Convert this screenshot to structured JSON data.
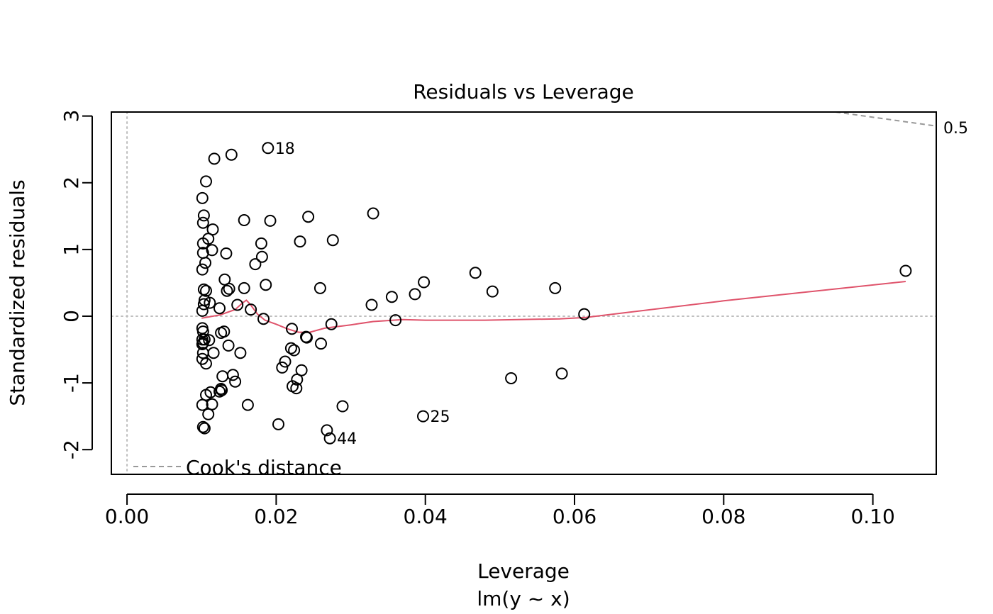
{
  "chart_data": {
    "type": "scatter",
    "title": "Residuals vs Leverage",
    "xlabel": "Leverage",
    "sublabel": "lm(y ~ x)",
    "ylabel": "Standardized residuals",
    "xlim": [
      -0.0021,
      0.1085
    ],
    "ylim": [
      -2.37,
      3.06
    ],
    "x_ticks": [
      0.0,
      0.02,
      0.04,
      0.06,
      0.08,
      0.1
    ],
    "x_tick_labels": [
      "0.00",
      "0.02",
      "0.04",
      "0.06",
      "0.08",
      "0.10"
    ],
    "y_ticks": [
      -2,
      -1,
      0,
      1,
      2,
      3
    ],
    "y_tick_labels": [
      "-2",
      "-1",
      "0",
      "1",
      "2",
      "3"
    ],
    "grid": false,
    "legend": {
      "label": "Cook's distance",
      "position": "bottom-left"
    },
    "cooks_contour": {
      "label": "0.5",
      "points": [
        [
          0.095,
          3.06
        ],
        [
          0.1085,
          2.85
        ]
      ]
    },
    "point_labels": [
      {
        "text": "18",
        "x": 0.0189,
        "y": 2.52
      },
      {
        "text": "25",
        "x": 0.0397,
        "y": -1.5
      },
      {
        "text": "44",
        "x": 0.0272,
        "y": -1.83
      }
    ],
    "colors": {
      "points": "#000000",
      "smooth": "#DF536B",
      "reference": "#BEBEBE",
      "cooks": "#999999"
    },
    "points": [
      [
        0.0189,
        2.52
      ],
      [
        0.014,
        2.42
      ],
      [
        0.0117,
        2.36
      ],
      [
        0.0106,
        2.02
      ],
      [
        0.0101,
        1.77
      ],
      [
        0.0103,
        1.51
      ],
      [
        0.0102,
        1.4
      ],
      [
        0.0115,
        1.3
      ],
      [
        0.0157,
        1.44
      ],
      [
        0.0192,
        1.43
      ],
      [
        0.0243,
        1.49
      ],
      [
        0.033,
        1.54
      ],
      [
        0.0109,
        1.16
      ],
      [
        0.0102,
        1.09
      ],
      [
        0.0114,
        0.99
      ],
      [
        0.0102,
        0.95
      ],
      [
        0.0133,
        0.94
      ],
      [
        0.018,
        1.09
      ],
      [
        0.0181,
        0.89
      ],
      [
        0.0232,
        1.12
      ],
      [
        0.0276,
        1.14
      ],
      [
        0.0105,
        0.8
      ],
      [
        0.0172,
        0.78
      ],
      [
        0.0101,
        0.7
      ],
      [
        0.0131,
        0.55
      ],
      [
        0.0186,
        0.47
      ],
      [
        0.0137,
        0.41
      ],
      [
        0.0134,
        0.38
      ],
      [
        0.0157,
        0.42
      ],
      [
        0.0103,
        0.4
      ],
      [
        0.0106,
        0.38
      ],
      [
        0.0104,
        0.24
      ],
      [
        0.0103,
        0.18
      ],
      [
        0.0111,
        0.2
      ],
      [
        0.0101,
        0.08
      ],
      [
        0.0124,
        0.12
      ],
      [
        0.0148,
        0.17
      ],
      [
        0.0166,
        0.1
      ],
      [
        0.0183,
        -0.04
      ],
      [
        0.0259,
        0.42
      ],
      [
        0.0328,
        0.17
      ],
      [
        0.0355,
        0.29
      ],
      [
        0.0386,
        0.33
      ],
      [
        0.0398,
        0.51
      ],
      [
        0.0467,
        0.65
      ],
      [
        0.049,
        0.37
      ],
      [
        0.0574,
        0.42
      ],
      [
        0.1044,
        0.68
      ],
      [
        0.0613,
        0.03
      ],
      [
        0.036,
        -0.06
      ],
      [
        0.0274,
        -0.12
      ],
      [
        0.0221,
        -0.19
      ],
      [
        0.024,
        -0.31
      ],
      [
        0.0241,
        -0.32
      ],
      [
        0.026,
        -0.41
      ],
      [
        0.0101,
        -0.18
      ],
      [
        0.0102,
        -0.23
      ],
      [
        0.013,
        -0.23
      ],
      [
        0.0126,
        -0.25
      ],
      [
        0.0101,
        -0.35
      ],
      [
        0.0104,
        -0.35
      ],
      [
        0.0102,
        -0.4
      ],
      [
        0.011,
        -0.36
      ],
      [
        0.0101,
        -0.42
      ],
      [
        0.0136,
        -0.44
      ],
      [
        0.0102,
        -0.55
      ],
      [
        0.0116,
        -0.55
      ],
      [
        0.0152,
        -0.55
      ],
      [
        0.0101,
        -0.64
      ],
      [
        0.0106,
        -0.71
      ],
      [
        0.022,
        -0.48
      ],
      [
        0.0224,
        -0.51
      ],
      [
        0.0212,
        -0.68
      ],
      [
        0.0208,
        -0.77
      ],
      [
        0.0234,
        -0.81
      ],
      [
        0.0142,
        -0.88
      ],
      [
        0.0128,
        -0.9
      ],
      [
        0.0145,
        -0.98
      ],
      [
        0.0228,
        -0.95
      ],
      [
        0.0222,
        -1.05
      ],
      [
        0.0227,
        -1.08
      ],
      [
        0.0126,
        -1.09
      ],
      [
        0.0127,
        -1.11
      ],
      [
        0.0112,
        -1.14
      ],
      [
        0.0124,
        -1.13
      ],
      [
        0.0106,
        -1.18
      ],
      [
        0.0101,
        -1.33
      ],
      [
        0.0114,
        -1.32
      ],
      [
        0.0162,
        -1.33
      ],
      [
        0.0109,
        -1.47
      ],
      [
        0.0102,
        -1.66
      ],
      [
        0.0104,
        -1.68
      ],
      [
        0.0203,
        -1.62
      ],
      [
        0.0268,
        -1.71
      ],
      [
        0.0272,
        -1.83
      ],
      [
        0.0289,
        -1.35
      ],
      [
        0.0397,
        -1.5
      ],
      [
        0.0515,
        -0.93
      ],
      [
        0.0583,
        -0.86
      ]
    ],
    "smooth_line": [
      [
        0.01,
        -0.03
      ],
      [
        0.0125,
        0.02
      ],
      [
        0.0145,
        0.1
      ],
      [
        0.0155,
        0.2
      ],
      [
        0.016,
        0.24
      ],
      [
        0.0165,
        0.18
      ],
      [
        0.0175,
        0.03
      ],
      [
        0.0185,
        -0.06
      ],
      [
        0.02,
        -0.12
      ],
      [
        0.0215,
        -0.19
      ],
      [
        0.023,
        -0.24
      ],
      [
        0.0245,
        -0.24
      ],
      [
        0.0265,
        -0.18
      ],
      [
        0.03,
        -0.13
      ],
      [
        0.033,
        -0.08
      ],
      [
        0.037,
        -0.05
      ],
      [
        0.04,
        -0.06
      ],
      [
        0.048,
        -0.06
      ],
      [
        0.058,
        -0.04
      ],
      [
        0.0615,
        -0.02
      ],
      [
        0.08,
        0.23
      ],
      [
        0.1044,
        0.52
      ]
    ]
  }
}
